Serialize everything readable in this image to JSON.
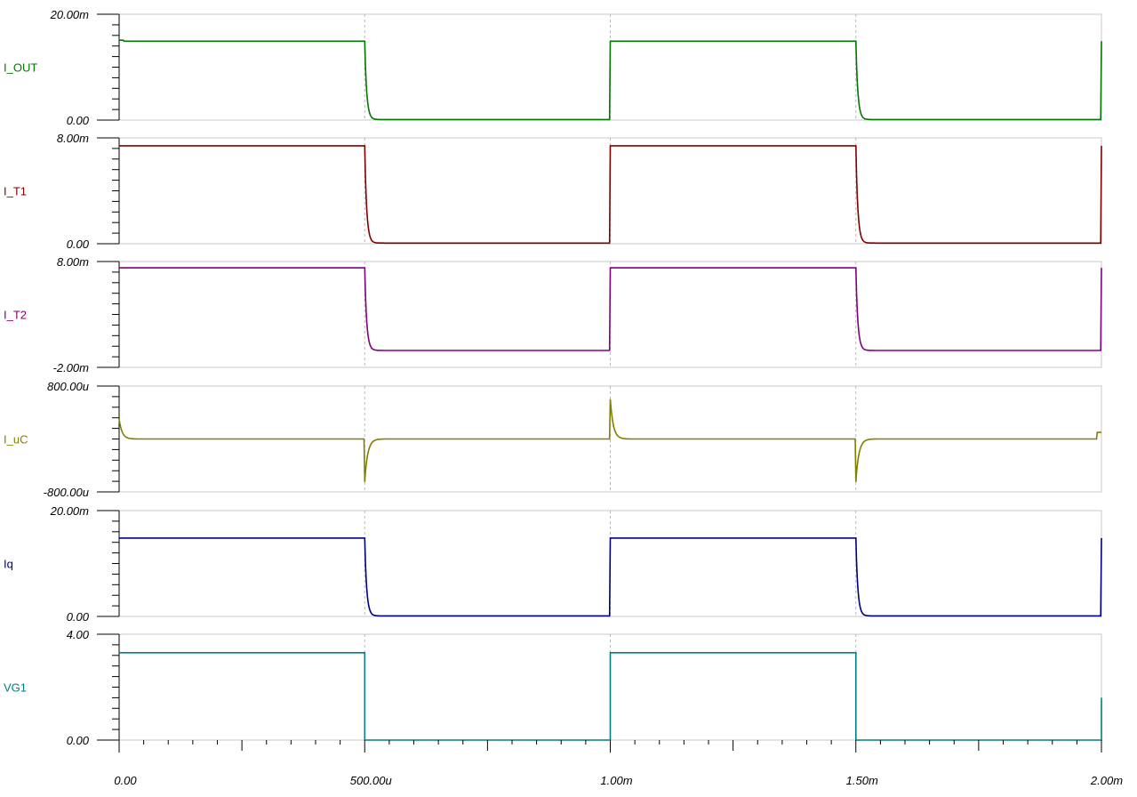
{
  "chart_data": {
    "type": "line",
    "x_ticks": [
      "0.00",
      "500.00u",
      "1.00m",
      "1.50m",
      "2.00m"
    ],
    "x_range": [
      0,
      0.002
    ],
    "grid_x": [
      0.0005,
      0.001,
      0.0015
    ],
    "panels": [
      {
        "name": "I_OUT",
        "color": "#007700",
        "y_range": [
          0,
          0.02
        ],
        "y_ticks": [
          "20.00m",
          "0.00"
        ],
        "high": 0.0149,
        "low": 0.0001,
        "tau": 4e-06,
        "points": [
          [
            0,
            0.0151
          ],
          [
            3e-06,
            0.0149
          ],
          [
            0.0005,
            0.0149
          ],
          [
            0.001,
            0.0001
          ],
          [
            0.001,
            0.0149
          ],
          [
            0.0015,
            0.0149
          ],
          [
            0.002,
            0.0001
          ]
        ]
      },
      {
        "name": "I_T1",
        "color": "#800000",
        "y_range": [
          0,
          0.008
        ],
        "y_ticks": [
          "8.00m",
          "0.00"
        ],
        "high": 0.0074,
        "low": 5e-05,
        "tau": 4e-06,
        "points": [
          [
            0,
            0.0074
          ],
          [
            0.0005,
            0.0074
          ],
          [
            0.001,
            5e-05
          ],
          [
            0.001,
            0.0074
          ],
          [
            0.0015,
            0.0074
          ],
          [
            0.002,
            5e-05
          ]
        ]
      },
      {
        "name": "I_T2",
        "color": "#800080",
        "y_range": [
          -0.002,
          0.008
        ],
        "y_ticks": [
          "8.00m",
          "-2.00m"
        ],
        "high": 0.0074,
        "low": -0.0004,
        "tau": 4e-06,
        "points": [
          [
            0,
            0.0074
          ],
          [
            0.0005,
            0.0074
          ],
          [
            0.001,
            -0.0004
          ],
          [
            0.001,
            0.0074
          ],
          [
            0.0015,
            0.0074
          ],
          [
            0.002,
            -0.0004
          ]
        ]
      },
      {
        "name": "I_uC",
        "color": "#808000",
        "y_range": [
          -0.0008,
          0.0008
        ],
        "y_ticks": [
          "800.00u",
          "-800.00u"
        ],
        "baseline": 0.0,
        "spike_rise": 0.0006,
        "spike_fall": -0.00065,
        "tau": 6e-06,
        "points": [
          [
            0,
            0.0003
          ],
          [
            0.0005,
            -0.00065
          ],
          [
            0.001,
            0.0006
          ],
          [
            0.0015,
            -0.00065
          ],
          [
            0.002,
            0.0001
          ]
        ]
      },
      {
        "name": "Iq",
        "color": "#000080",
        "y_range": [
          0,
          0.02
        ],
        "y_ticks": [
          "20.00m",
          "0.00"
        ],
        "high": 0.0148,
        "low": 0.0001,
        "tau": 4e-06,
        "points": [
          [
            0,
            0.0148
          ],
          [
            0.0005,
            0.0148
          ],
          [
            0.001,
            0.0001
          ],
          [
            0.001,
            0.0148
          ],
          [
            0.0015,
            0.0148
          ],
          [
            0.002,
            0.0001
          ]
        ]
      },
      {
        "name": "VG1",
        "color": "#008080",
        "y_range": [
          0,
          4
        ],
        "y_ticks": [
          "4.00",
          "0.00"
        ],
        "high": 3.3,
        "low": 0.0,
        "points": [
          [
            0,
            3.3
          ],
          [
            0.0005,
            3.3
          ],
          [
            0.0005,
            0
          ],
          [
            0.001,
            0
          ],
          [
            0.001,
            3.3
          ],
          [
            0.0015,
            3.3
          ],
          [
            0.0015,
            0
          ],
          [
            0.002,
            0
          ],
          [
            0.002,
            1.6
          ]
        ]
      }
    ]
  }
}
